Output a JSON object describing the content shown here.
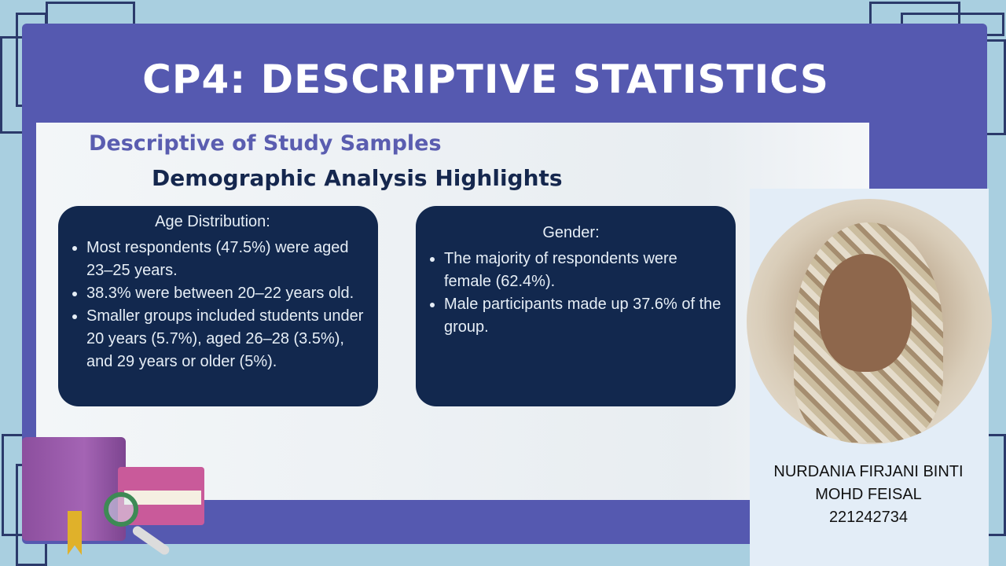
{
  "slide": {
    "title": "CP4: DESCRIPTIVE STATISTICS",
    "subtitle": "Descriptive of Study Samples",
    "heading": "Demographic Analysis Highlights"
  },
  "age_card": {
    "title": "Age Distribution:",
    "items": [
      "Most respondents (47.5%) were aged 23–25 years.",
      "38.3% were between 20–22 years old.",
      "Smaller groups included students under 20 years (5.7%), aged 26–28 (3.5%), and 29 years or older (5%)."
    ]
  },
  "gender_card": {
    "title": "Gender:",
    "items": [
      "The majority of respondents were female (62.4%).",
      "Male participants made up 37.6% of the group."
    ]
  },
  "presenter": {
    "name_line1": "NURDANIA FIRJANI BINTI",
    "name_line2": "MOHD FEISAL",
    "id": "221242734"
  },
  "colors": {
    "background": "#a9cfe0",
    "frame": "#5559b0",
    "card": "#12284e",
    "subtitle": "#5a5db0",
    "heading": "#15274e"
  }
}
